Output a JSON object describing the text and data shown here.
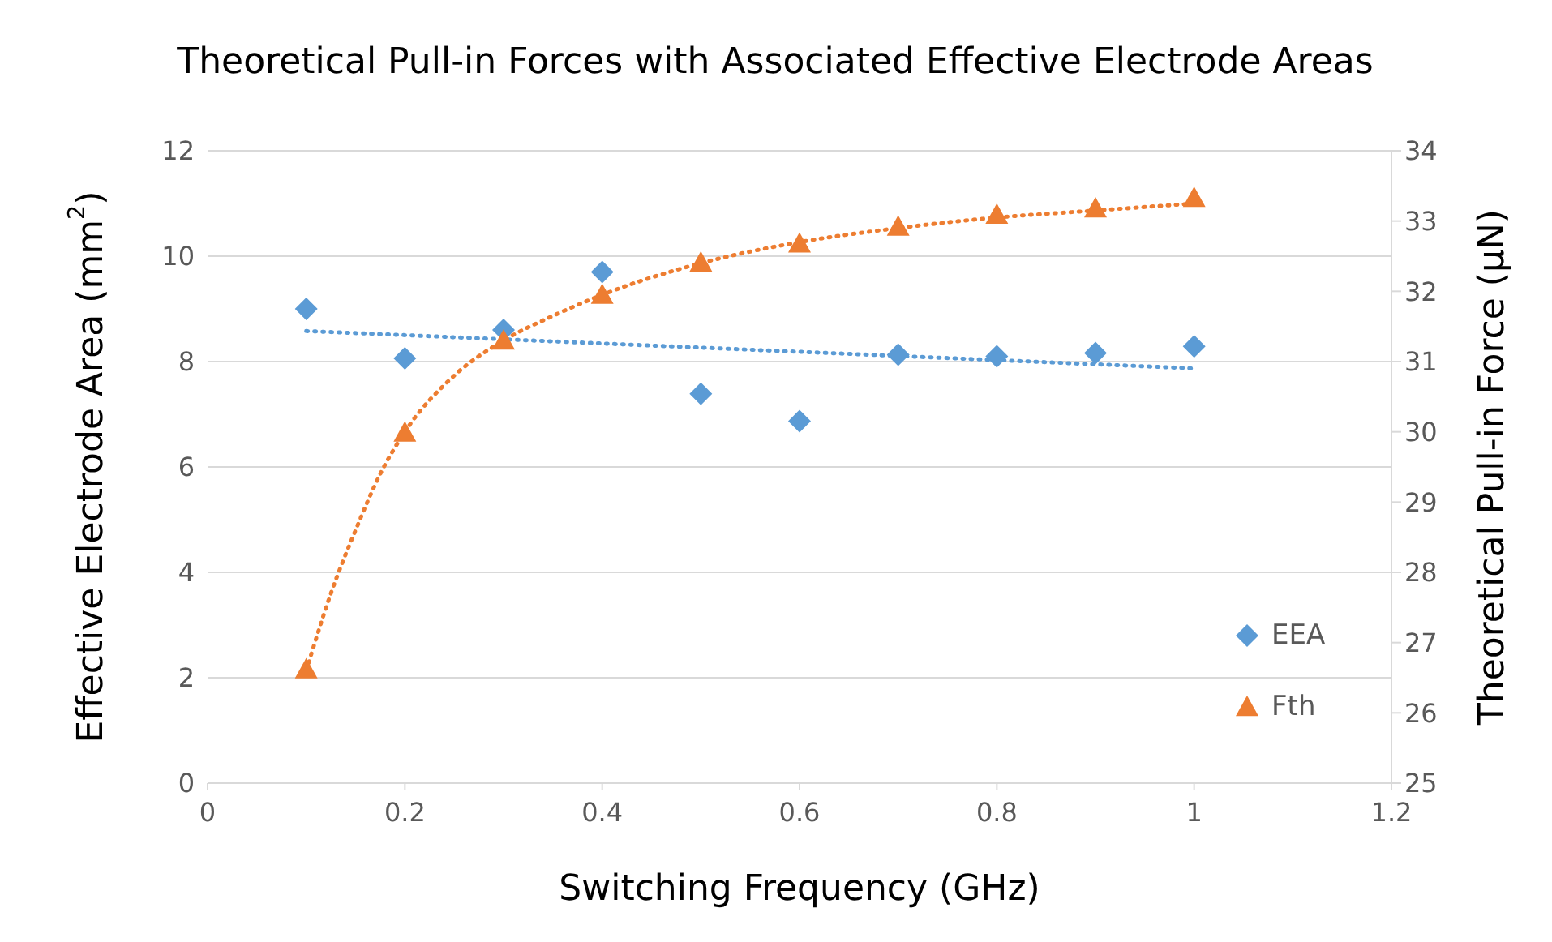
{
  "chart_data": {
    "type": "scatter",
    "title": "Theoretical Pull-in Forces with Associated Effective Electrode Areas",
    "xlabel": "Switching Frequency (GHz)",
    "ylabel": "Effective Electrode Area (mm$^{2}$)",
    "y2label": "Theoretical Pull-in Force (µN)",
    "x": [
      0.1,
      0.2,
      0.3,
      0.4,
      0.5,
      0.6,
      0.7,
      0.8,
      0.9,
      1.0
    ],
    "series": [
      {
        "name": "EEA",
        "color": "#5b9bd5",
        "marker": "diamond",
        "values": [
          9.0,
          8.06,
          8.6,
          9.7,
          7.39,
          6.87,
          8.13,
          8.1,
          8.16,
          8.29
        ]
      },
      {
        "name": "Fth",
        "axis": "y2",
        "color": "#ed7d31",
        "marker": "triangle",
        "values": [
          26.62,
          29.99,
          31.3,
          31.95,
          32.41,
          32.68,
          32.92,
          33.09,
          33.18,
          33.33
        ]
      },
      {
        "type": "line",
        "color": "#5b9bd5",
        "line_style": "dotted",
        "marker": "none",
        "x": [
          0.1,
          1.0
        ],
        "values": [
          8.58,
          7.87
        ]
      },
      {
        "type": "line",
        "axis": "y2",
        "color": "#ed7d31",
        "line_style": "dotted",
        "marker": "none",
        "x": [
          0.1,
          0.125,
          0.15,
          0.175,
          0.2,
          0.25,
          0.3,
          0.35,
          0.4,
          0.5,
          0.6,
          0.7,
          0.8,
          0.9,
          1.0
        ],
        "values": [
          26.6,
          27.7,
          28.6,
          29.4,
          30.0,
          30.8,
          31.3,
          31.65,
          31.95,
          32.4,
          32.7,
          32.9,
          33.05,
          33.15,
          33.25
        ]
      }
    ],
    "xlim": [
      0,
      1.2
    ],
    "xticks": [
      0,
      0.2,
      0.4,
      0.6,
      0.8,
      1,
      1.2
    ],
    "ylim": [
      0,
      12
    ],
    "yticks": [
      0,
      2,
      4,
      6,
      8,
      10,
      12
    ],
    "y2lim": [
      25,
      34
    ],
    "y2ticks": [
      25,
      26,
      27,
      28,
      29,
      30,
      31,
      32,
      33,
      34
    ],
    "grid": "y",
    "legend": "right"
  }
}
